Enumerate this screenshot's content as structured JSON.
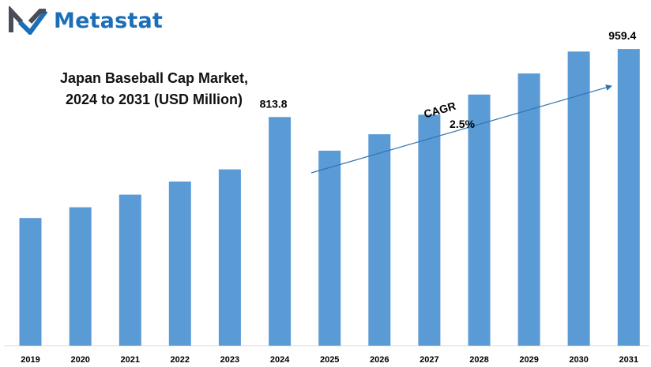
{
  "brand": {
    "name": "Metastat"
  },
  "colors": {
    "bar": "#5b9bd5",
    "arrow": "#2e75b6",
    "brand": "#1c6fb7",
    "logo_dark": "#4a4d57"
  },
  "chart_data": {
    "type": "bar",
    "title_line1": "Japan Baseball Cap Market,",
    "title_line2": "2024 to 2031 (USD Million)",
    "categories": [
      "2019",
      "2020",
      "2021",
      "2022",
      "2023",
      "2024",
      "2025",
      "2026",
      "2027",
      "2028",
      "2029",
      "2030",
      "2031"
    ],
    "values": [
      598,
      621,
      648,
      676,
      702,
      813.8,
      742,
      777,
      819,
      862,
      907,
      954,
      959.4
    ],
    "data_labels": {
      "2024": "813.8",
      "2031": "959.4"
    },
    "annotation": {
      "label": "CAGR",
      "value": "2.5%"
    },
    "ylim": [
      325,
      1000
    ],
    "grid": false,
    "legend": "none"
  }
}
